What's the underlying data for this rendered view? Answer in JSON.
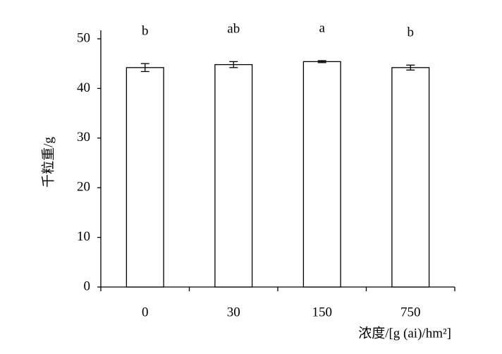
{
  "chart_data": {
    "type": "bar",
    "categories": [
      "0",
      "30",
      "150",
      "750"
    ],
    "values": [
      44.2,
      44.8,
      45.4,
      44.2
    ],
    "errors": [
      0.8,
      0.6,
      0.2,
      0.5
    ],
    "significance_labels": [
      "b",
      "ab",
      "a",
      "b"
    ],
    "color": "#ffffff",
    "ylabel": "千粒重/g",
    "xlabel": "浓度/[g (ai)/hm²]",
    "ylim": [
      0,
      50
    ],
    "yticks": [
      0,
      10,
      20,
      30,
      40,
      50
    ]
  }
}
